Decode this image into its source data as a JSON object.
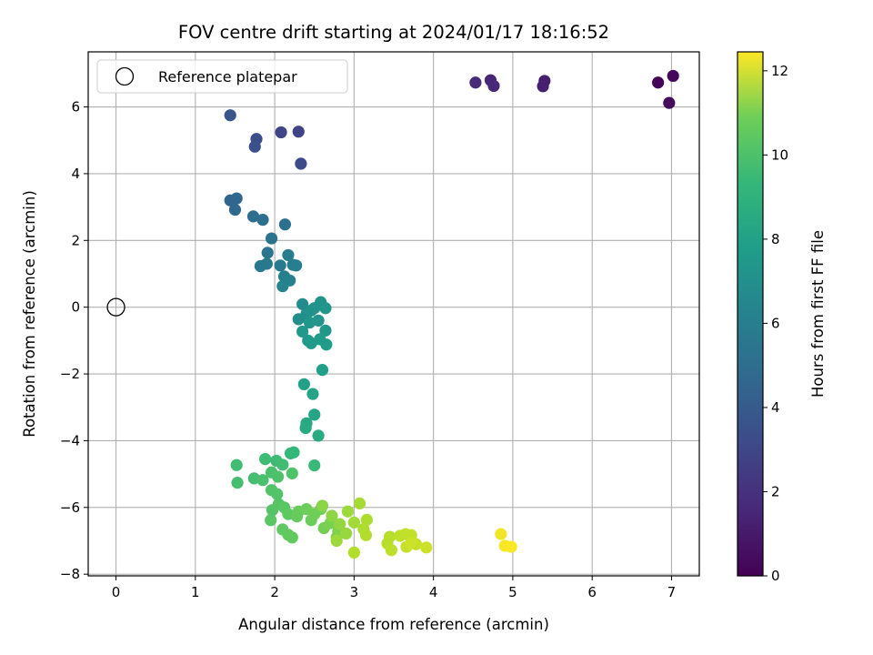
{
  "chart_data": {
    "type": "scatter",
    "title": "FOV centre drift starting at 2024/01/17 18:16:52",
    "xlabel": "Angular distance from reference (arcmin)",
    "ylabel": "Rotation from reference (arcmin)",
    "xlim": [
      -0.35,
      7.35
    ],
    "ylim": [
      -8.05,
      7.65
    ],
    "xticks": [
      0,
      1,
      2,
      3,
      4,
      5,
      6,
      7
    ],
    "yticks": [
      -8,
      -6,
      -4,
      -2,
      0,
      2,
      4,
      6
    ],
    "grid": true,
    "legend": {
      "placement": "top-left",
      "entries": [
        "Reference platepar"
      ]
    },
    "reference_point": {
      "x": 0,
      "y": 0,
      "label": "Reference platepar"
    },
    "colorbar": {
      "label": "Hours from first FF file",
      "colormap": "viridis",
      "range": [
        0,
        12.45
      ],
      "ticks": [
        0,
        2,
        4,
        6,
        8,
        10,
        12
      ]
    },
    "series": [
      {
        "points": [
          {
            "x": 6.83,
            "y": 6.73,
            "c": 0.1
          },
          {
            "x": 7.02,
            "y": 6.93,
            "c": 0.2
          },
          {
            "x": 6.97,
            "y": 6.12,
            "c": 0.4
          },
          {
            "x": 5.4,
            "y": 6.78,
            "c": 1.0
          },
          {
            "x": 5.38,
            "y": 6.62,
            "c": 1.1
          },
          {
            "x": 4.72,
            "y": 6.8,
            "c": 1.3
          },
          {
            "x": 4.76,
            "y": 6.63,
            "c": 1.4
          },
          {
            "x": 4.53,
            "y": 6.73,
            "c": 1.5
          },
          {
            "x": 2.3,
            "y": 5.26,
            "c": 2.5
          },
          {
            "x": 2.08,
            "y": 5.24,
            "c": 2.6
          },
          {
            "x": 2.33,
            "y": 4.3,
            "c": 2.8
          },
          {
            "x": 1.77,
            "y": 5.04,
            "c": 3.0
          },
          {
            "x": 1.75,
            "y": 4.81,
            "c": 3.1
          },
          {
            "x": 1.44,
            "y": 5.75,
            "c": 3.3
          },
          {
            "x": 1.44,
            "y": 3.2,
            "c": 4.0
          },
          {
            "x": 1.52,
            "y": 3.26,
            "c": 4.1
          },
          {
            "x": 1.5,
            "y": 2.92,
            "c": 4.2
          },
          {
            "x": 1.73,
            "y": 2.72,
            "c": 4.4
          },
          {
            "x": 1.85,
            "y": 2.62,
            "c": 4.5
          },
          {
            "x": 2.13,
            "y": 2.48,
            "c": 4.6
          },
          {
            "x": 1.96,
            "y": 2.06,
            "c": 4.8
          },
          {
            "x": 1.91,
            "y": 1.63,
            "c": 4.9
          },
          {
            "x": 1.82,
            "y": 1.23,
            "c": 5.0
          },
          {
            "x": 1.9,
            "y": 1.3,
            "c": 5.0
          },
          {
            "x": 2.07,
            "y": 1.25,
            "c": 5.1
          },
          {
            "x": 2.17,
            "y": 1.56,
            "c": 5.2
          },
          {
            "x": 2.23,
            "y": 1.27,
            "c": 5.3
          },
          {
            "x": 2.27,
            "y": 1.25,
            "c": 5.3
          },
          {
            "x": 2.12,
            "y": 0.92,
            "c": 5.4
          },
          {
            "x": 2.19,
            "y": 0.8,
            "c": 5.5
          },
          {
            "x": 2.1,
            "y": 0.63,
            "c": 5.6
          },
          {
            "x": 2.35,
            "y": 0.09,
            "c": 6.0
          },
          {
            "x": 2.3,
            "y": -0.36,
            "c": 6.1
          },
          {
            "x": 2.4,
            "y": -0.2,
            "c": 6.2
          },
          {
            "x": 2.46,
            "y": -0.1,
            "c": 6.3
          },
          {
            "x": 2.5,
            "y": -0.03,
            "c": 6.3
          },
          {
            "x": 2.55,
            "y": -0.4,
            "c": 6.4
          },
          {
            "x": 2.58,
            "y": 0.15,
            "c": 6.4
          },
          {
            "x": 2.64,
            "y": -0.03,
            "c": 6.5
          },
          {
            "x": 2.44,
            "y": -0.46,
            "c": 6.5
          },
          {
            "x": 2.35,
            "y": -0.73,
            "c": 6.6
          },
          {
            "x": 2.64,
            "y": -0.7,
            "c": 6.6
          },
          {
            "x": 2.42,
            "y": -1.0,
            "c": 6.7
          },
          {
            "x": 2.46,
            "y": -1.08,
            "c": 6.7
          },
          {
            "x": 2.57,
            "y": -0.96,
            "c": 6.8
          },
          {
            "x": 2.65,
            "y": -1.12,
            "c": 6.8
          },
          {
            "x": 2.6,
            "y": -1.88,
            "c": 7.0
          },
          {
            "x": 2.37,
            "y": -2.31,
            "c": 7.1
          },
          {
            "x": 2.48,
            "y": -2.6,
            "c": 7.2
          },
          {
            "x": 2.5,
            "y": -3.22,
            "c": 7.3
          },
          {
            "x": 2.4,
            "y": -3.48,
            "c": 7.4
          },
          {
            "x": 2.39,
            "y": -3.62,
            "c": 7.5
          },
          {
            "x": 2.55,
            "y": -3.85,
            "c": 7.6
          },
          {
            "x": 2.2,
            "y": -4.38,
            "c": 8.3
          },
          {
            "x": 2.24,
            "y": -4.35,
            "c": 8.3
          },
          {
            "x": 2.5,
            "y": -4.74,
            "c": 8.4
          },
          {
            "x": 1.88,
            "y": -4.55,
            "c": 8.5
          },
          {
            "x": 2.02,
            "y": -4.6,
            "c": 8.5
          },
          {
            "x": 2.1,
            "y": -4.72,
            "c": 8.6
          },
          {
            "x": 1.52,
            "y": -4.73,
            "c": 8.6
          },
          {
            "x": 1.53,
            "y": -5.26,
            "c": 8.7
          },
          {
            "x": 1.74,
            "y": -5.13,
            "c": 8.7
          },
          {
            "x": 1.85,
            "y": -5.18,
            "c": 8.8
          },
          {
            "x": 1.96,
            "y": -4.95,
            "c": 8.8
          },
          {
            "x": 2.04,
            "y": -5.08,
            "c": 8.9
          },
          {
            "x": 2.22,
            "y": -4.98,
            "c": 8.9
          },
          {
            "x": 1.96,
            "y": -5.48,
            "c": 9.0
          },
          {
            "x": 2.03,
            "y": -5.6,
            "c": 9.0
          },
          {
            "x": 1.97,
            "y": -6.08,
            "c": 9.1
          },
          {
            "x": 2.05,
            "y": -5.9,
            "c": 9.1
          },
          {
            "x": 1.95,
            "y": -6.38,
            "c": 9.2
          },
          {
            "x": 2.12,
            "y": -6.0,
            "c": 9.2
          },
          {
            "x": 2.17,
            "y": -6.2,
            "c": 9.3
          },
          {
            "x": 2.1,
            "y": -6.66,
            "c": 9.3
          },
          {
            "x": 2.22,
            "y": -6.9,
            "c": 9.4
          },
          {
            "x": 2.17,
            "y": -6.82,
            "c": 9.4
          },
          {
            "x": 2.28,
            "y": -6.27,
            "c": 9.5
          },
          {
            "x": 2.3,
            "y": -6.12,
            "c": 9.5
          },
          {
            "x": 2.4,
            "y": -6.05,
            "c": 9.6
          },
          {
            "x": 2.46,
            "y": -6.38,
            "c": 9.6
          },
          {
            "x": 2.5,
            "y": -6.2,
            "c": 9.7
          },
          {
            "x": 2.58,
            "y": -6.05,
            "c": 9.7
          },
          {
            "x": 2.62,
            "y": -6.62,
            "c": 9.8
          },
          {
            "x": 2.7,
            "y": -6.47,
            "c": 9.9
          },
          {
            "x": 2.8,
            "y": -6.72,
            "c": 10.0
          },
          {
            "x": 2.78,
            "y": -6.9,
            "c": 10.1
          },
          {
            "x": 2.6,
            "y": -5.95,
            "c": 10.2
          },
          {
            "x": 2.72,
            "y": -6.25,
            "c": 10.3
          },
          {
            "x": 2.82,
            "y": -6.5,
            "c": 10.4
          },
          {
            "x": 2.9,
            "y": -6.78,
            "c": 10.5
          },
          {
            "x": 2.78,
            "y": -7.0,
            "c": 10.6
          },
          {
            "x": 2.92,
            "y": -6.12,
            "c": 10.6
          },
          {
            "x": 3.0,
            "y": -6.45,
            "c": 10.7
          },
          {
            "x": 3.07,
            "y": -5.88,
            "c": 10.8
          },
          {
            "x": 3.12,
            "y": -6.65,
            "c": 10.9
          },
          {
            "x": 3.16,
            "y": -6.37,
            "c": 10.9
          },
          {
            "x": 3.15,
            "y": -6.83,
            "c": 11.0
          },
          {
            "x": 3.0,
            "y": -7.35,
            "c": 11.0
          },
          {
            "x": 3.45,
            "y": -6.88,
            "c": 11.1
          },
          {
            "x": 3.42,
            "y": -7.08,
            "c": 11.1
          },
          {
            "x": 3.47,
            "y": -7.28,
            "c": 11.2
          },
          {
            "x": 3.58,
            "y": -6.85,
            "c": 11.2
          },
          {
            "x": 3.65,
            "y": -6.8,
            "c": 11.3
          },
          {
            "x": 3.72,
            "y": -6.83,
            "c": 11.3
          },
          {
            "x": 3.66,
            "y": -7.18,
            "c": 11.4
          },
          {
            "x": 3.78,
            "y": -7.1,
            "c": 11.4
          },
          {
            "x": 3.72,
            "y": -7.06,
            "c": 11.5
          },
          {
            "x": 3.91,
            "y": -7.2,
            "c": 11.5
          },
          {
            "x": 4.85,
            "y": -6.8,
            "c": 12.2
          },
          {
            "x": 4.9,
            "y": -7.15,
            "c": 12.3
          },
          {
            "x": 4.98,
            "y": -7.18,
            "c": 12.4
          }
        ]
      }
    ]
  }
}
